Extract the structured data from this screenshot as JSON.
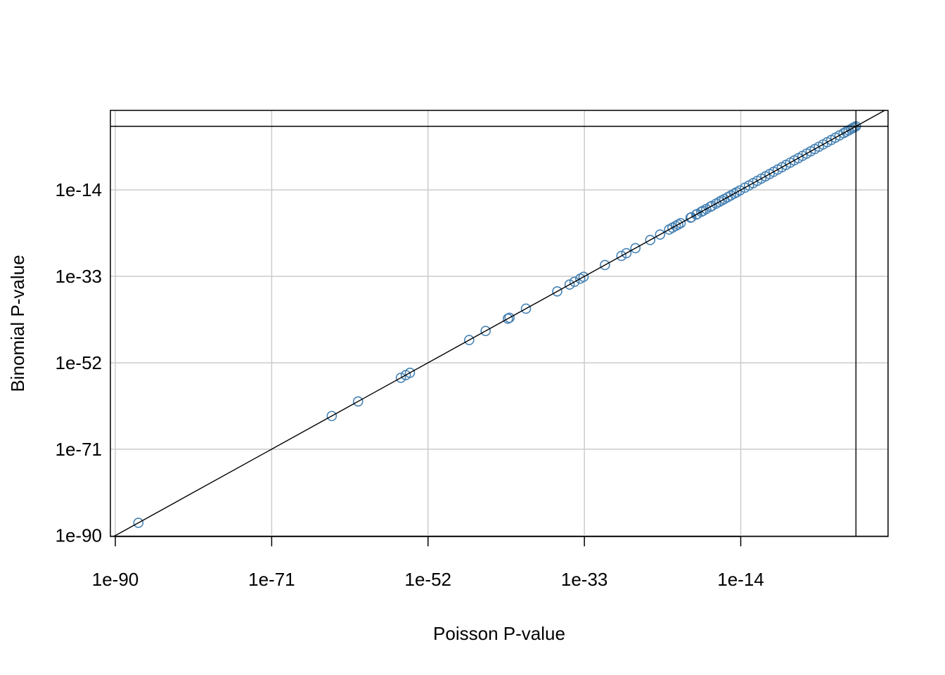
{
  "chart_data": {
    "type": "scatter",
    "title": "",
    "xlabel": "Poisson P-value",
    "ylabel": "Binomial P-value",
    "scale": {
      "x": "log10",
      "y": "log10"
    },
    "xlim_log10": [
      -90.6,
      3.9
    ],
    "ylim_log10": [
      -90.2,
      3.5
    ],
    "x_ticks": [
      {
        "log10": -90,
        "label": "1e-90"
      },
      {
        "log10": -71,
        "label": "1e-71"
      },
      {
        "log10": -52,
        "label": "1e-52"
      },
      {
        "log10": -33,
        "label": "1e-33"
      },
      {
        "log10": -14,
        "label": "1e-14"
      }
    ],
    "y_ticks": [
      {
        "log10": -90,
        "label": "1e-90"
      },
      {
        "log10": -71,
        "label": "1e-71"
      },
      {
        "log10": -52,
        "label": "1e-52"
      },
      {
        "log10": -33,
        "label": "1e-33"
      },
      {
        "log10": -14,
        "label": "1e-14"
      }
    ],
    "grid": true,
    "reference_lines": {
      "identity": true,
      "vertical_log10": 0,
      "horizontal_log10": 0
    },
    "colors": {
      "points": "#4682b4",
      "lines": "#000000",
      "grid": "#cccccc"
    },
    "series": [
      {
        "log10_x": [
          -87.2,
          -63.7,
          -60.5,
          -55.3,
          -54.7,
          -54.2,
          -47.0,
          -45.0,
          -42.3,
          -42.1,
          -40.1,
          -36.3,
          -34.8,
          -34.2,
          -33.5,
          -33.1,
          -30.5,
          -28.5,
          -27.9,
          -26.8,
          -25.0,
          -23.8,
          -22.7,
          -22.3,
          -21.9,
          -21.6,
          -21.3,
          -20.1,
          -20.0,
          -19.4,
          -19.3,
          -18.8,
          -18.6,
          -18.2,
          -17.7,
          -17.5,
          -17.0,
          -16.6,
          -16.3,
          -16.0,
          -15.6,
          -15.2,
          -14.8,
          -14.5,
          -14.1,
          -13.5,
          -13.0,
          -12.5,
          -12.0,
          -11.5,
          -11.0,
          -10.5,
          -10.0,
          -9.5,
          -9.0,
          -8.5,
          -8.0,
          -7.5,
          -7.0,
          -6.5,
          -6.0,
          -5.5,
          -5.0,
          -4.5,
          -4.0,
          -3.5,
          -3.0,
          -2.5,
          -2.0,
          -1.5,
          -1.2,
          -0.9,
          -0.6,
          -0.4,
          -0.2,
          0.0
        ],
        "log10_y": [
          -87.2,
          -63.7,
          -60.5,
          -55.3,
          -54.7,
          -54.2,
          -47.0,
          -45.0,
          -42.3,
          -42.1,
          -40.1,
          -36.3,
          -34.8,
          -34.2,
          -33.5,
          -33.1,
          -30.5,
          -28.5,
          -27.9,
          -26.8,
          -25.0,
          -23.8,
          -22.7,
          -22.3,
          -21.9,
          -21.6,
          -21.3,
          -20.1,
          -20.0,
          -19.4,
          -19.3,
          -18.8,
          -18.6,
          -18.2,
          -17.7,
          -17.5,
          -17.0,
          -16.6,
          -16.3,
          -16.0,
          -15.6,
          -15.2,
          -14.8,
          -14.5,
          -14.1,
          -13.5,
          -13.0,
          -12.5,
          -12.0,
          -11.5,
          -11.0,
          -10.5,
          -10.0,
          -9.5,
          -9.0,
          -8.5,
          -8.0,
          -7.5,
          -7.0,
          -6.5,
          -6.0,
          -5.5,
          -5.0,
          -4.5,
          -4.0,
          -3.5,
          -3.0,
          -2.5,
          -2.0,
          -1.5,
          -1.2,
          -0.9,
          -0.6,
          -0.4,
          -0.2,
          0.0
        ]
      }
    ]
  }
}
